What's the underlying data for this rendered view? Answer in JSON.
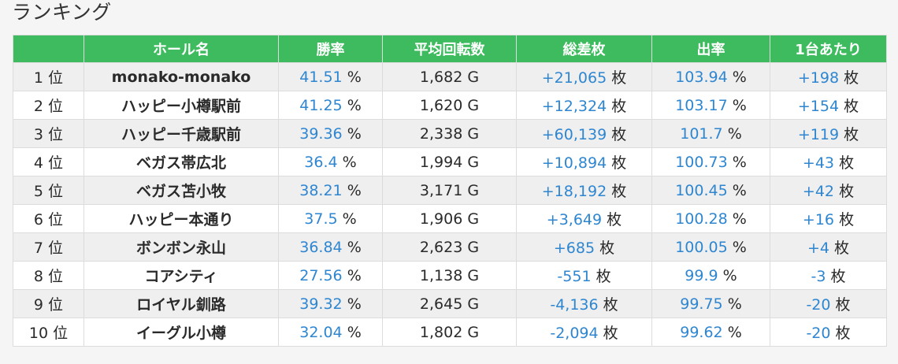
{
  "page": {
    "title": "ランキング"
  },
  "table": {
    "header_color": "#3dbb5e",
    "value_color": "#2e86d1",
    "headers": [
      "",
      "ホール名",
      "勝率",
      "平均回転数",
      "総差枚",
      "出率",
      "1台あたり"
    ],
    "rows": [
      {
        "rank": "1 位",
        "hall": "monako-monako",
        "win_rate": "41.51",
        "win_rate_unit": "%",
        "avg_spins": "1,682 G",
        "total_diff": "+21,065",
        "total_diff_unit": "枚",
        "payout": "103.94",
        "payout_unit": "%",
        "per_machine": "+198",
        "per_machine_unit": "枚"
      },
      {
        "rank": "2 位",
        "hall": "ハッピー小樽駅前",
        "win_rate": "41.25",
        "win_rate_unit": "%",
        "avg_spins": "1,620 G",
        "total_diff": "+12,324",
        "total_diff_unit": "枚",
        "payout": "103.17",
        "payout_unit": "%",
        "per_machine": "+154",
        "per_machine_unit": "枚"
      },
      {
        "rank": "3 位",
        "hall": "ハッピー千歳駅前",
        "win_rate": "39.36",
        "win_rate_unit": "%",
        "avg_spins": "2,338 G",
        "total_diff": "+60,139",
        "total_diff_unit": "枚",
        "payout": "101.7",
        "payout_unit": "%",
        "per_machine": "+119",
        "per_machine_unit": "枚"
      },
      {
        "rank": "4 位",
        "hall": "ベガス帯広北",
        "win_rate": "36.4",
        "win_rate_unit": "%",
        "avg_spins": "1,994 G",
        "total_diff": "+10,894",
        "total_diff_unit": "枚",
        "payout": "100.73",
        "payout_unit": "%",
        "per_machine": "+43",
        "per_machine_unit": "枚"
      },
      {
        "rank": "5 位",
        "hall": "ベガス苫小牧",
        "win_rate": "38.21",
        "win_rate_unit": "%",
        "avg_spins": "3,171 G",
        "total_diff": "+18,192",
        "total_diff_unit": "枚",
        "payout": "100.45",
        "payout_unit": "%",
        "per_machine": "+42",
        "per_machine_unit": "枚"
      },
      {
        "rank": "6 位",
        "hall": "ハッピー本通り",
        "win_rate": "37.5",
        "win_rate_unit": "%",
        "avg_spins": "1,906 G",
        "total_diff": "+3,649",
        "total_diff_unit": "枚",
        "payout": "100.28",
        "payout_unit": "%",
        "per_machine": "+16",
        "per_machine_unit": "枚"
      },
      {
        "rank": "7 位",
        "hall": "ボンボン永山",
        "win_rate": "36.84",
        "win_rate_unit": "%",
        "avg_spins": "2,623 G",
        "total_diff": "+685",
        "total_diff_unit": "枚",
        "payout": "100.05",
        "payout_unit": "%",
        "per_machine": "+4",
        "per_machine_unit": "枚"
      },
      {
        "rank": "8 位",
        "hall": "コアシティ",
        "win_rate": "27.56",
        "win_rate_unit": "%",
        "avg_spins": "1,138 G",
        "total_diff": "-551",
        "total_diff_unit": "枚",
        "payout": "99.9",
        "payout_unit": "%",
        "per_machine": "-3",
        "per_machine_unit": "枚"
      },
      {
        "rank": "9 位",
        "hall": "ロイヤル釧路",
        "win_rate": "39.32",
        "win_rate_unit": "%",
        "avg_spins": "2,645 G",
        "total_diff": "-4,136",
        "total_diff_unit": "枚",
        "payout": "99.75",
        "payout_unit": "%",
        "per_machine": "-20",
        "per_machine_unit": "枚"
      },
      {
        "rank": "10 位",
        "hall": "イーグル小樽",
        "win_rate": "32.04",
        "win_rate_unit": "%",
        "avg_spins": "1,802 G",
        "total_diff": "-2,094",
        "total_diff_unit": "枚",
        "payout": "99.62",
        "payout_unit": "%",
        "per_machine": "-20",
        "per_machine_unit": "枚"
      }
    ]
  }
}
